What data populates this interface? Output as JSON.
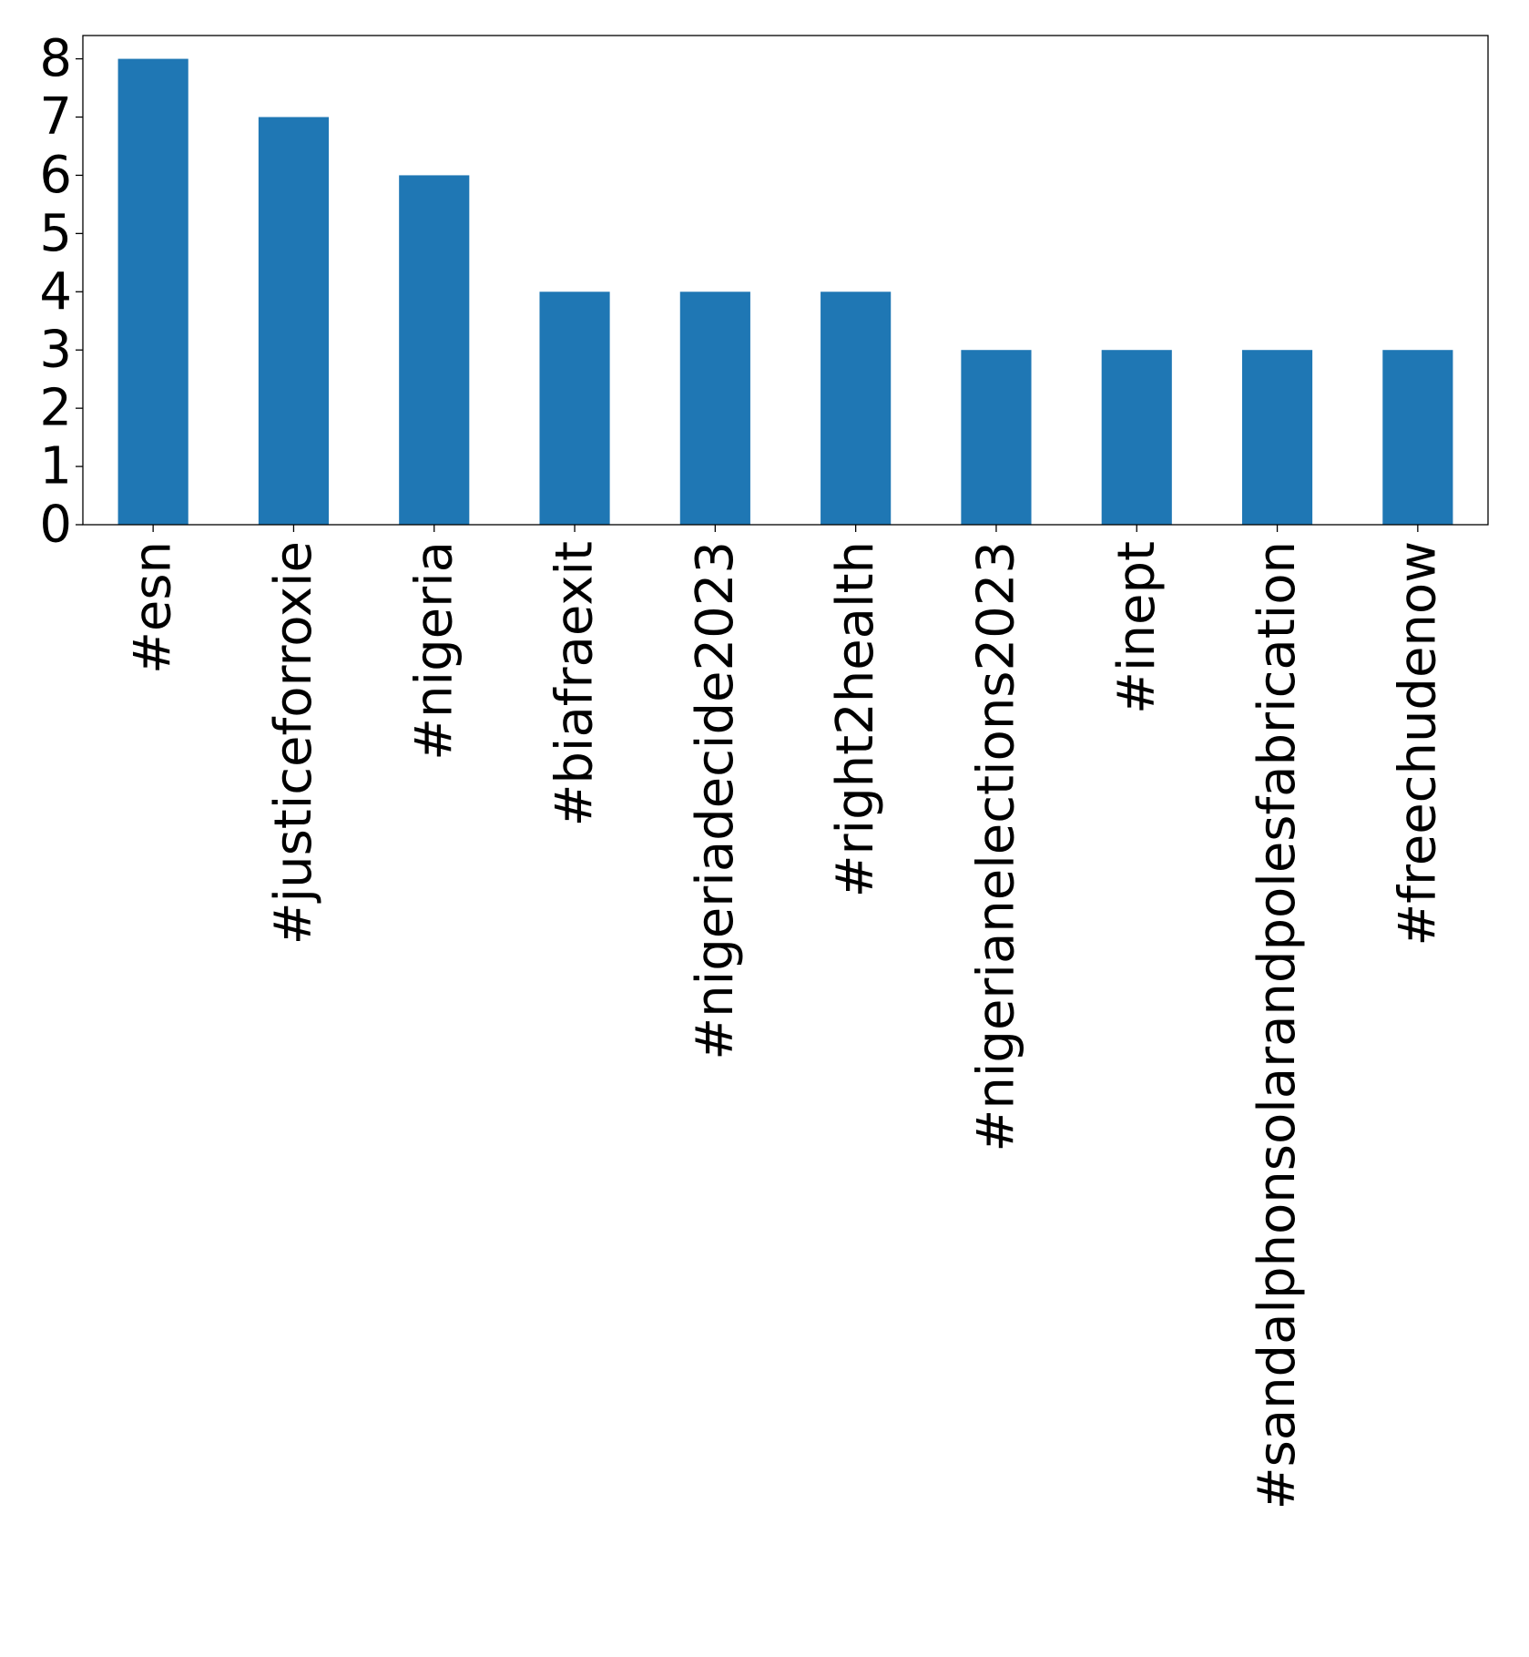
{
  "chart_data": {
    "type": "bar",
    "title": "",
    "xlabel": "",
    "ylabel": "",
    "categories": [
      "#esn",
      "#justiceforroxie",
      "#nigeria",
      "#biafraexit",
      "#nigeriadecide2023",
      "#right2health",
      "#nigerianelections2023",
      "#inept",
      "#sandalphonsolarandpolesfabrication",
      "#freechudenow"
    ],
    "values": [
      8,
      7,
      6,
      4,
      4,
      4,
      3,
      3,
      3,
      3
    ],
    "ylim": [
      0,
      8.4
    ],
    "yticks": [
      0,
      1,
      2,
      3,
      4,
      5,
      6,
      7,
      8
    ],
    "grid": false,
    "legend": "none",
    "bar_color": "#1f77b4"
  }
}
